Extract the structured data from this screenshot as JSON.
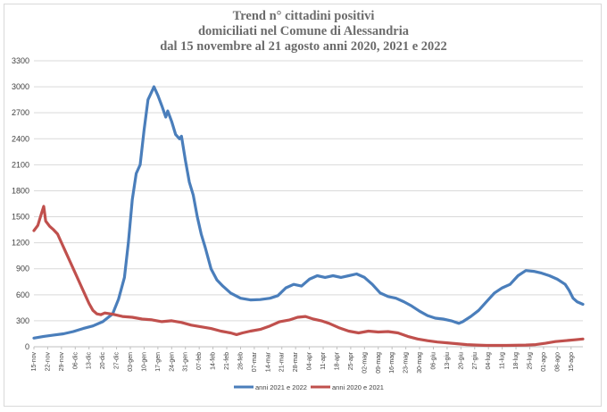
{
  "chart_data": {
    "type": "line",
    "title_lines": [
      "Trend n° cittadini positivi",
      "domiciliati nel Comune di Alessandria",
      "dal 15 novembre al 21 agosto anni 2020, 2021 e 2022"
    ],
    "xlabel": "",
    "ylabel": "",
    "ylim": [
      0,
      3300
    ],
    "yticks": [
      0,
      300,
      600,
      900,
      1200,
      1500,
      1800,
      2100,
      2400,
      2700,
      3000,
      3300
    ],
    "grid": true,
    "legend_position": "bottom",
    "x_tick_labels": [
      "15-nov",
      "22-nov",
      "29-nov",
      "06-dic",
      "13-dic",
      "20-dic",
      "27-dic",
      "03-gen",
      "10-gen",
      "17-gen",
      "24-gen",
      "31-gen",
      "07-feb",
      "14-feb",
      "21-feb",
      "28-feb",
      "07-mar",
      "14-mar",
      "21-mar",
      "28-mar",
      "04-apr",
      "11-apr",
      "18-apr",
      "25-apr",
      "02-mag",
      "09-mag",
      "16-mag",
      "23-mag",
      "30-mag",
      "06-giu",
      "13-giu",
      "20-giu",
      "27-giu",
      "04-lug",
      "11-lug",
      "18-lug",
      "25-lug",
      "01-ago",
      "08-ago",
      "15-ago"
    ],
    "x_day_range": [
      0,
      279
    ],
    "series": [
      {
        "name": "anni 2021 e 2022",
        "color": "#4a7ebb",
        "points": [
          [
            0,
            100
          ],
          [
            5,
            120
          ],
          [
            10,
            135
          ],
          [
            15,
            150
          ],
          [
            20,
            175
          ],
          [
            25,
            210
          ],
          [
            30,
            240
          ],
          [
            35,
            290
          ],
          [
            40,
            380
          ],
          [
            43,
            550
          ],
          [
            46,
            800
          ],
          [
            48,
            1200
          ],
          [
            50,
            1700
          ],
          [
            52,
            2000
          ],
          [
            54,
            2100
          ],
          [
            56,
            2500
          ],
          [
            58,
            2850
          ],
          [
            60,
            2950
          ],
          [
            61,
            3000
          ],
          [
            63,
            2900
          ],
          [
            65,
            2780
          ],
          [
            67,
            2650
          ],
          [
            68,
            2720
          ],
          [
            70,
            2600
          ],
          [
            72,
            2450
          ],
          [
            74,
            2400
          ],
          [
            75,
            2430
          ],
          [
            77,
            2150
          ],
          [
            79,
            1900
          ],
          [
            81,
            1750
          ],
          [
            83,
            1500
          ],
          [
            85,
            1300
          ],
          [
            87,
            1150
          ],
          [
            90,
            900
          ],
          [
            93,
            770
          ],
          [
            96,
            700
          ],
          [
            100,
            620
          ],
          [
            105,
            560
          ],
          [
            110,
            540
          ],
          [
            115,
            545
          ],
          [
            120,
            560
          ],
          [
            124,
            590
          ],
          [
            128,
            680
          ],
          [
            132,
            720
          ],
          [
            136,
            700
          ],
          [
            140,
            780
          ],
          [
            144,
            820
          ],
          [
            148,
            800
          ],
          [
            152,
            820
          ],
          [
            156,
            800
          ],
          [
            160,
            820
          ],
          [
            164,
            840
          ],
          [
            168,
            800
          ],
          [
            172,
            720
          ],
          [
            176,
            620
          ],
          [
            180,
            580
          ],
          [
            184,
            560
          ],
          [
            188,
            520
          ],
          [
            192,
            470
          ],
          [
            196,
            410
          ],
          [
            200,
            360
          ],
          [
            204,
            330
          ],
          [
            208,
            320
          ],
          [
            212,
            300
          ],
          [
            216,
            270
          ],
          [
            218,
            290
          ],
          [
            222,
            350
          ],
          [
            226,
            420
          ],
          [
            230,
            520
          ],
          [
            234,
            620
          ],
          [
            238,
            680
          ],
          [
            242,
            720
          ],
          [
            246,
            820
          ],
          [
            250,
            880
          ],
          [
            254,
            870
          ],
          [
            258,
            850
          ],
          [
            262,
            820
          ],
          [
            266,
            780
          ],
          [
            270,
            720
          ],
          [
            272,
            650
          ],
          [
            274,
            560
          ],
          [
            276,
            520
          ],
          [
            279,
            490
          ]
        ]
      },
      {
        "name": "anni 2020 e 2021",
        "color": "#c0504d",
        "points": [
          [
            0,
            1340
          ],
          [
            2,
            1400
          ],
          [
            4,
            1550
          ],
          [
            5,
            1620
          ],
          [
            6,
            1450
          ],
          [
            8,
            1390
          ],
          [
            10,
            1350
          ],
          [
            12,
            1300
          ],
          [
            14,
            1200
          ],
          [
            16,
            1100
          ],
          [
            18,
            1000
          ],
          [
            20,
            900
          ],
          [
            22,
            800
          ],
          [
            24,
            700
          ],
          [
            26,
            600
          ],
          [
            28,
            500
          ],
          [
            30,
            420
          ],
          [
            32,
            380
          ],
          [
            34,
            370
          ],
          [
            36,
            390
          ],
          [
            40,
            375
          ],
          [
            45,
            350
          ],
          [
            50,
            340
          ],
          [
            55,
            320
          ],
          [
            60,
            310
          ],
          [
            65,
            290
          ],
          [
            70,
            300
          ],
          [
            75,
            280
          ],
          [
            80,
            250
          ],
          [
            85,
            230
          ],
          [
            90,
            210
          ],
          [
            95,
            180
          ],
          [
            100,
            160
          ],
          [
            103,
            140
          ],
          [
            106,
            160
          ],
          [
            110,
            180
          ],
          [
            115,
            200
          ],
          [
            120,
            240
          ],
          [
            125,
            290
          ],
          [
            130,
            310
          ],
          [
            134,
            340
          ],
          [
            138,
            350
          ],
          [
            142,
            320
          ],
          [
            146,
            300
          ],
          [
            150,
            270
          ],
          [
            155,
            220
          ],
          [
            160,
            180
          ],
          [
            165,
            160
          ],
          [
            170,
            180
          ],
          [
            175,
            170
          ],
          [
            180,
            175
          ],
          [
            185,
            160
          ],
          [
            190,
            120
          ],
          [
            195,
            90
          ],
          [
            200,
            70
          ],
          [
            205,
            55
          ],
          [
            210,
            45
          ],
          [
            215,
            35
          ],
          [
            220,
            25
          ],
          [
            225,
            20
          ],
          [
            230,
            15
          ],
          [
            240,
            15
          ],
          [
            250,
            20
          ],
          [
            255,
            25
          ],
          [
            260,
            40
          ],
          [
            265,
            60
          ],
          [
            270,
            70
          ],
          [
            275,
            80
          ],
          [
            279,
            90
          ]
        ]
      }
    ]
  }
}
